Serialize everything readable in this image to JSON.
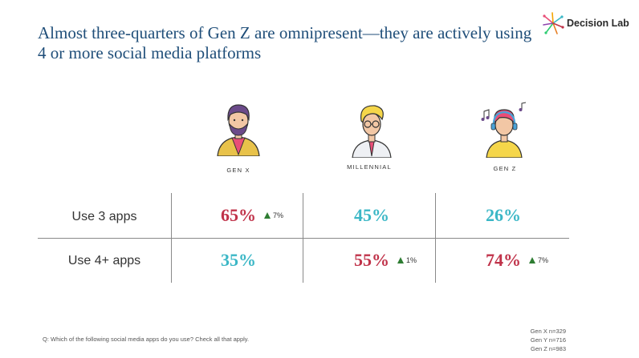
{
  "title": "Almost three-quarters of Gen Z are omnipresent—they are actively using 4 or more social media platforms",
  "brand": {
    "name": "Decision Lab"
  },
  "generations": [
    {
      "label": "GEN X",
      "icon": "gen-x-avatar-icon"
    },
    {
      "label": "MILLENNIAL",
      "icon": "millennial-avatar-icon"
    },
    {
      "label": "GEN Z",
      "icon": "gen-z-avatar-icon"
    }
  ],
  "rows": [
    {
      "label": "Use 3 apps",
      "cells": [
        {
          "value": "65%",
          "color": "#c0334a",
          "delta": "7%"
        },
        {
          "value": "45%",
          "color": "#3bb7c6",
          "delta": ""
        },
        {
          "value": "26%",
          "color": "#3bb7c6",
          "delta": ""
        }
      ]
    },
    {
      "label": "Use 4+ apps",
      "cells": [
        {
          "value": "35%",
          "color": "#3bb7c6",
          "delta": ""
        },
        {
          "value": "55%",
          "color": "#c0334a",
          "delta": "1%"
        },
        {
          "value": "74%",
          "color": "#c0334a",
          "delta": "7%"
        }
      ]
    }
  ],
  "footnote": "Q: Which of the following social media apps do you use? Check all that apply.",
  "samples": [
    "Gen X n=329",
    "Gen Y n=716",
    "Gen Z n=983"
  ],
  "colors": {
    "title": "#1f4e79",
    "highlight": "#c0334a",
    "neutral": "#3bb7c6",
    "up_arrow": "#2e7d32"
  }
}
